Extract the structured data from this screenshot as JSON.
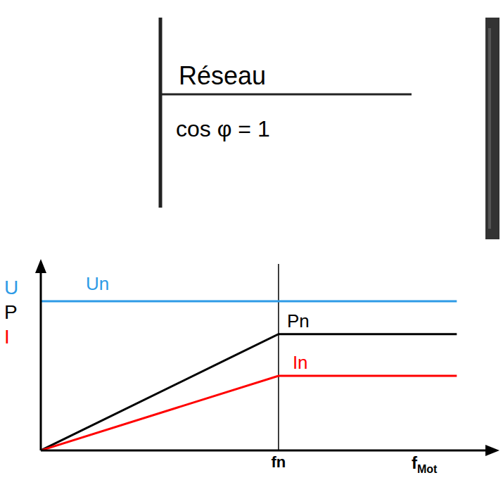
{
  "chart_data": {
    "type": "line",
    "annotations": [
      "Réseau",
      "cos φ = 1"
    ],
    "x": [
      0,
      1,
      1.75
    ],
    "series": [
      {
        "name": "Un",
        "color": "#2e9be6",
        "values": [
          1,
          1,
          1
        ]
      },
      {
        "name": "Pn",
        "color": "#000000",
        "values": [
          0,
          0.78,
          0.78
        ]
      },
      {
        "name": "In",
        "color": "#ff0000",
        "values": [
          0,
          0.5,
          0.5
        ]
      }
    ],
    "x_label": "fMot",
    "y_label": [
      "U",
      "P",
      "I"
    ],
    "xlim": [
      0,
      1.9
    ],
    "ylim": [
      0,
      1.25
    ],
    "xticks": [
      {
        "value": 1,
        "label": "fn"
      }
    ],
    "yticks": [],
    "tick_labels": "x",
    "grid": false
  }
}
